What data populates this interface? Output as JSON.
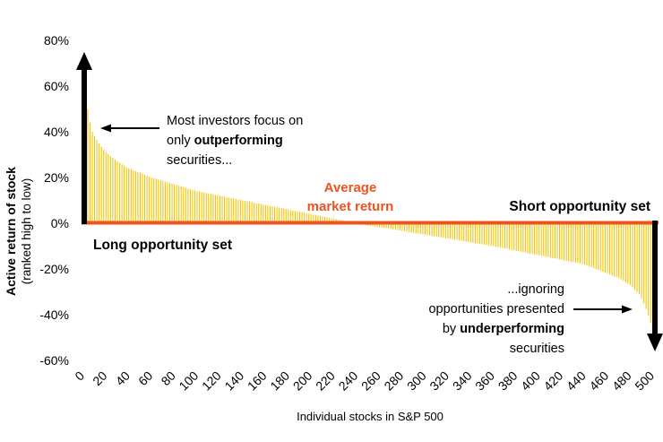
{
  "chart_data": {
    "type": "bar",
    "xlabel": "Individual stocks in S&P 500",
    "ylabel": "Active return of stock",
    "ylabel_sub": "(ranked high to low)",
    "ylim": [
      -60,
      80
    ],
    "y_ticks": [
      "80%",
      "60%",
      "40%",
      "20%",
      "0%",
      "-20%",
      "-40%",
      "-60%"
    ],
    "y_tick_values": [
      80,
      60,
      40,
      20,
      0,
      -20,
      -40,
      -60
    ],
    "xlim": [
      0,
      500
    ],
    "x_ticks": [
      0,
      20,
      40,
      60,
      80,
      100,
      120,
      140,
      160,
      180,
      200,
      220,
      240,
      260,
      280,
      300,
      320,
      340,
      360,
      380,
      400,
      420,
      440,
      460,
      480,
      500
    ],
    "bar_color": "#f5c400",
    "curve_points": [
      [
        0,
        65
      ],
      [
        2,
        53
      ],
      [
        4,
        50
      ],
      [
        6,
        44
      ],
      [
        8,
        40
      ],
      [
        10,
        38
      ],
      [
        15,
        34
      ],
      [
        20,
        31
      ],
      [
        30,
        27
      ],
      [
        40,
        24
      ],
      [
        50,
        22
      ],
      [
        60,
        20
      ],
      [
        80,
        17
      ],
      [
        100,
        14
      ],
      [
        120,
        12
      ],
      [
        140,
        10
      ],
      [
        160,
        8
      ],
      [
        180,
        6
      ],
      [
        200,
        4
      ],
      [
        220,
        2
      ],
      [
        230,
        1
      ],
      [
        240,
        0
      ],
      [
        250,
        -1
      ],
      [
        270,
        -2.5
      ],
      [
        300,
        -5
      ],
      [
        330,
        -7.5
      ],
      [
        360,
        -10
      ],
      [
        390,
        -13
      ],
      [
        420,
        -16
      ],
      [
        440,
        -18
      ],
      [
        460,
        -22
      ],
      [
        470,
        -24
      ],
      [
        480,
        -27
      ],
      [
        488,
        -31
      ],
      [
        493,
        -36
      ],
      [
        497,
        -42
      ],
      [
        500,
        -47
      ]
    ],
    "annotations": {
      "outperforming": {
        "line1": "Most investors focus on",
        "line2_pre": "only ",
        "line2_bold": "outperforming",
        "line3": "securities..."
      },
      "average": {
        "line1": "Average",
        "line2": "market return"
      },
      "long_set": "Long opportunity  set",
      "short_set": "Short opportunity  set",
      "underperforming": {
        "line1": "...ignoring",
        "line2": "opportunities presented",
        "line3_pre": "by ",
        "line3_bold": "underperforming",
        "line4": "securities"
      }
    },
    "colors": {
      "zero_line": "#f0521e",
      "arrow": "#000000",
      "average_text": "#f0521e"
    }
  }
}
